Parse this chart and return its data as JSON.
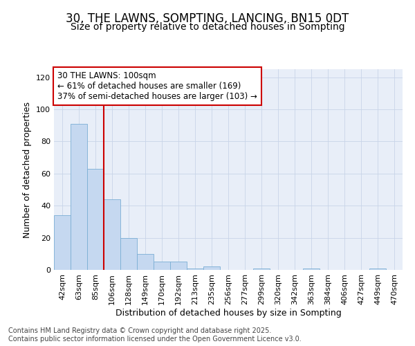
{
  "title_line1": "30, THE LAWNS, SOMPTING, LANCING, BN15 0DT",
  "title_line2": "Size of property relative to detached houses in Sompting",
  "xlabel": "Distribution of detached houses by size in Sompting",
  "ylabel": "Number of detached properties",
  "categories": [
    "42sqm",
    "63sqm",
    "85sqm",
    "106sqm",
    "128sqm",
    "149sqm",
    "170sqm",
    "192sqm",
    "213sqm",
    "235sqm",
    "256sqm",
    "277sqm",
    "299sqm",
    "320sqm",
    "342sqm",
    "363sqm",
    "384sqm",
    "406sqm",
    "427sqm",
    "449sqm",
    "470sqm"
  ],
  "values": [
    34,
    91,
    63,
    44,
    20,
    10,
    5,
    5,
    1,
    2,
    0,
    0,
    1,
    0,
    0,
    1,
    0,
    0,
    0,
    1,
    0
  ],
  "bar_color": "#c5d8f0",
  "bar_edge_color": "#7aaed4",
  "vline_position": 2.5,
  "vline_color": "#cc0000",
  "annotation_text": "30 THE LAWNS: 100sqm\n← 61% of detached houses are smaller (169)\n37% of semi-detached houses are larger (103) →",
  "annotation_box_color": "#cc0000",
  "annotation_bg": "#ffffff",
  "ylim": [
    0,
    125
  ],
  "yticks": [
    0,
    20,
    40,
    60,
    80,
    100,
    120
  ],
  "grid_color": "#c8d4e8",
  "bg_color": "#e8eef8",
  "footer_line1": "Contains HM Land Registry data © Crown copyright and database right 2025.",
  "footer_line2": "Contains public sector information licensed under the Open Government Licence v3.0.",
  "title_fontsize": 12,
  "subtitle_fontsize": 10,
  "axis_label_fontsize": 9,
  "tick_fontsize": 8,
  "annotation_fontsize": 8.5,
  "footer_fontsize": 7
}
